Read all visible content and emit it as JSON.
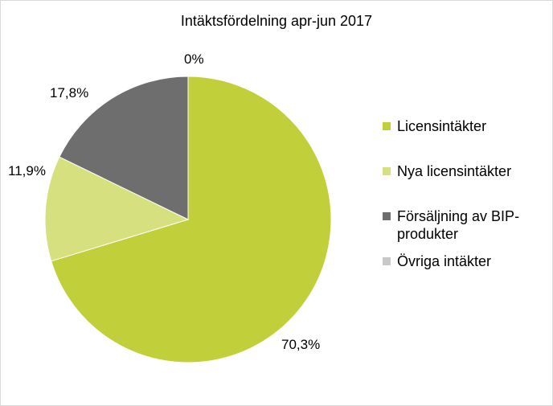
{
  "chart_data": {
    "type": "pie",
    "title": "Intäktsfördelning apr-jun 2017",
    "legend_position": "right",
    "slices": [
      {
        "name": "Licensintäkter",
        "value": 70.3,
        "label": "70,3%",
        "color": "#c0cf3a"
      },
      {
        "name": "Nya licensintäkter",
        "value": 11.9,
        "label": "11,9%",
        "color": "#d6e07e"
      },
      {
        "name": "Försäljning av BIP-produkter",
        "value": 17.8,
        "label": "17,8%",
        "color": "#6e6e6e"
      },
      {
        "name": "Övriga intäkter",
        "value": 0,
        "label": "0%",
        "color": "#c8c8c8"
      }
    ]
  }
}
